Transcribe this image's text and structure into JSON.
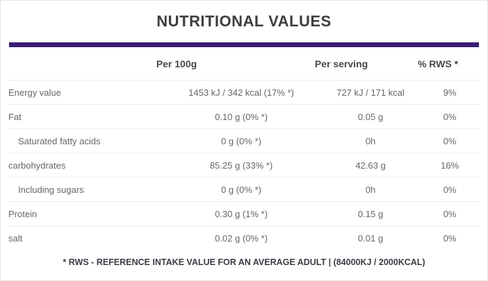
{
  "theme": {
    "accent_color": "#3b1e78",
    "separator_color": "#ededed",
    "border_color": "#e3e3e3",
    "title_color": "#3d3d3d"
  },
  "title": "NUTRITIONAL VALUES",
  "table": {
    "columns": {
      "per_100g": "Per 100g",
      "per_serving": "Per serving",
      "rws": "% RWS *"
    },
    "rows": [
      {
        "name": "Energy value",
        "indent": false,
        "per_100g": "1453 kJ / 342 kcal (17% *)",
        "per_serving": "727 kJ / 171 kcal",
        "rws": "9%"
      },
      {
        "name": "Fat",
        "indent": false,
        "per_100g": "0.10 g (0% *)",
        "per_serving": "0.05 g",
        "rws": "0%"
      },
      {
        "name": "Saturated fatty acids",
        "indent": true,
        "per_100g": "0 g (0% *)",
        "per_serving": "0h",
        "rws": "0%"
      },
      {
        "name": "carbohydrates",
        "indent": false,
        "per_100g": "85.25 g (33% *)",
        "per_serving": "42.63 g",
        "rws": "16%"
      },
      {
        "name": "Including sugars",
        "indent": true,
        "per_100g": "0 g (0% *)",
        "per_serving": "0h",
        "rws": "0%"
      },
      {
        "name": "Protein",
        "indent": false,
        "per_100g": "0.30 g (1% *)",
        "per_serving": "0.15 g",
        "rws": "0%"
      },
      {
        "name": "salt",
        "indent": false,
        "per_100g": "0.02 g (0% *)",
        "per_serving": "0.01 g",
        "rws": "0%"
      }
    ]
  },
  "footnote": "* RWS - REFERENCE INTAKE VALUE FOR AN AVERAGE ADULT | (84000KJ / 2000KCAL)"
}
